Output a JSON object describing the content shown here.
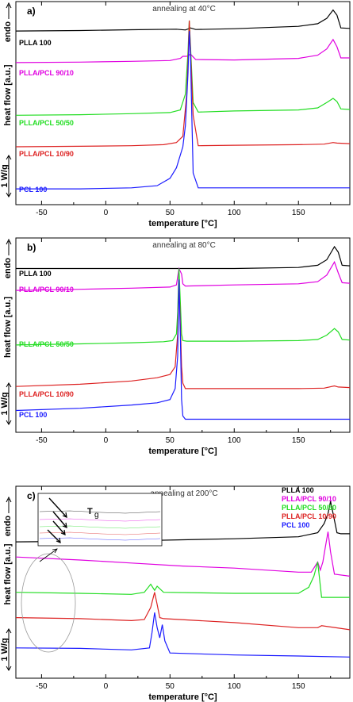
{
  "chart_data": [
    {
      "type": "line",
      "panel_label": "a)",
      "title": "annealing at 40°C",
      "xlabel": "temperature [°C]",
      "ylabel": "heat flow [a.u.]",
      "endo_label": "endo",
      "scale_label": "1 W/g",
      "xlim": [
        -70,
        190
      ],
      "xticks": [
        -50,
        0,
        50,
        100,
        150
      ],
      "legend_position": "left, labels above each curve",
      "series": [
        {
          "name": "PLLA 100",
          "color": "#000000",
          "baseline": 0.8,
          "x": [
            -70,
            -20,
            20,
            55,
            62,
            66,
            70,
            100,
            150,
            165,
            172,
            177,
            180,
            183,
            190
          ],
          "y": [
            0.8,
            0.805,
            0.812,
            0.818,
            0.81,
            0.83,
            0.815,
            0.822,
            0.845,
            0.87,
            0.92,
            1.0,
            0.95,
            0.83,
            0.825
          ]
        },
        {
          "name": "PLLA/PCL 90/10",
          "color": "#e000e0",
          "baseline": 0.5,
          "x": [
            -70,
            -20,
            20,
            50,
            58,
            60,
            63,
            66,
            70,
            100,
            150,
            165,
            172,
            177,
            180,
            183,
            190
          ],
          "y": [
            0.5,
            0.505,
            0.512,
            0.52,
            0.54,
            0.56,
            0.56,
            0.58,
            0.53,
            0.525,
            0.54,
            0.57,
            0.63,
            0.72,
            0.65,
            0.545,
            0.545
          ]
        },
        {
          "name": "PLLA/PCL 50/50",
          "color": "#22dd22",
          "baseline": 0.0,
          "x": [
            -70,
            -20,
            20,
            50,
            58,
            62,
            64,
            65,
            66,
            68,
            72,
            100,
            150,
            165,
            172,
            177,
            180,
            183,
            190
          ],
          "y": [
            0.0,
            0.005,
            0.015,
            0.025,
            0.05,
            0.2,
            0.6,
            0.9,
            0.65,
            0.12,
            0.03,
            0.04,
            0.05,
            0.07,
            0.12,
            0.16,
            0.13,
            0.06,
            0.055
          ]
        },
        {
          "name": "PLLA/PCL 10/90",
          "color": "#dd2222",
          "baseline": -0.3,
          "x": [
            -70,
            -20,
            20,
            45,
            55,
            60,
            63,
            64,
            65,
            66,
            68,
            72,
            100,
            150,
            170,
            177,
            180,
            190
          ],
          "y": [
            -0.3,
            -0.295,
            -0.29,
            -0.28,
            -0.26,
            -0.2,
            0.2,
            0.5,
            0.9,
            0.6,
            0.0,
            -0.29,
            -0.285,
            -0.28,
            -0.275,
            -0.26,
            -0.265,
            -0.27
          ]
        },
        {
          "name": "PCL 100",
          "color": "#1a1aff",
          "baseline": -0.7,
          "x": [
            -70,
            -20,
            20,
            40,
            50,
            55,
            60,
            62,
            64,
            65,
            66,
            67,
            68,
            72,
            100,
            150,
            190
          ],
          "y": [
            -0.7,
            -0.7,
            -0.69,
            -0.67,
            -0.6,
            -0.5,
            -0.3,
            -0.1,
            0.4,
            0.8,
            0.55,
            0.0,
            -0.55,
            -0.69,
            -0.69,
            -0.69,
            -0.69
          ]
        }
      ]
    },
    {
      "type": "line",
      "panel_label": "b)",
      "title": "annealing at 80°C",
      "xlabel": "temperature [°C]",
      "ylabel": "heat flow [a.u.]",
      "endo_label": "endo",
      "scale_label": "1 W/g",
      "xlim": [
        -70,
        190
      ],
      "xticks": [
        -50,
        0,
        50,
        100,
        150
      ],
      "legend_position": "left, labels above each curve",
      "series": [
        {
          "name": "PLLA 100",
          "color": "#000000",
          "baseline": 0.8,
          "x": [
            -70,
            -20,
            20,
            55,
            100,
            150,
            165,
            172,
            178,
            181,
            184,
            190
          ],
          "y": [
            0.8,
            0.8,
            0.8,
            0.8,
            0.8,
            0.81,
            0.83,
            0.88,
            1.0,
            0.95,
            0.83,
            0.825
          ]
        },
        {
          "name": "PLLA/PCL 90/10",
          "color": "#e000e0",
          "baseline": 0.6,
          "x": [
            -70,
            -20,
            20,
            50,
            55,
            57,
            59,
            60,
            62,
            100,
            150,
            165,
            172,
            178,
            181,
            184,
            190
          ],
          "y": [
            0.6,
            0.61,
            0.62,
            0.63,
            0.65,
            0.8,
            0.75,
            0.66,
            0.64,
            0.65,
            0.66,
            0.68,
            0.74,
            0.86,
            0.76,
            0.67,
            0.665
          ]
        },
        {
          "name": "PLLA/PCL 50/50",
          "color": "#22dd22",
          "baseline": 0.1,
          "x": [
            -70,
            -20,
            20,
            45,
            52,
            55,
            56,
            57,
            58,
            59,
            60,
            63,
            100,
            150,
            165,
            172,
            178,
            181,
            184,
            190
          ],
          "y": [
            0.1,
            0.11,
            0.12,
            0.13,
            0.14,
            0.2,
            0.4,
            0.8,
            0.5,
            0.2,
            0.14,
            0.135,
            0.135,
            0.14,
            0.15,
            0.19,
            0.25,
            0.22,
            0.15,
            0.145
          ]
        },
        {
          "name": "PLLA/PCL 10/90",
          "color": "#dd2222",
          "baseline": -0.28,
          "x": [
            -70,
            -20,
            20,
            40,
            50,
            54,
            56,
            57,
            58,
            59,
            60,
            62,
            100,
            150,
            170,
            178,
            181,
            190
          ],
          "y": [
            -0.28,
            -0.26,
            -0.23,
            -0.2,
            -0.17,
            -0.1,
            0.2,
            0.7,
            0.3,
            -0.1,
            -0.25,
            -0.3,
            -0.3,
            -0.3,
            -0.295,
            -0.275,
            -0.285,
            -0.29
          ]
        },
        {
          "name": "PCL 100",
          "color": "#1a1aff",
          "baseline": -0.5,
          "x": [
            -70,
            -20,
            20,
            40,
            50,
            54,
            56,
            57,
            58,
            59,
            60,
            62,
            100,
            150,
            190
          ],
          "y": [
            -0.5,
            -0.48,
            -0.45,
            -0.43,
            -0.4,
            -0.3,
            0.0,
            0.7,
            0.2,
            -0.4,
            -0.55,
            -0.58,
            -0.58,
            -0.58,
            -0.58
          ]
        }
      ]
    },
    {
      "type": "line",
      "panel_label": "c)",
      "title": "annealing at 200°C",
      "xlabel": "temperature [°C]",
      "ylabel": "heat flow [a.u.]",
      "endo_label": "endo",
      "scale_label": "1 W/g",
      "inset_label": "T",
      "inset_label_sub": "g",
      "xlim": [
        -70,
        190
      ],
      "xticks": [
        -50,
        0,
        50,
        100,
        150
      ],
      "legend_position": "top-right",
      "series": [
        {
          "name": "PLLA 100",
          "color": "#000000",
          "baseline": 0.9,
          "x": [
            -70,
            -20,
            20,
            60,
            100,
            150,
            165,
            170,
            173,
            175,
            177,
            180,
            183,
            190
          ],
          "y": [
            0.9,
            0.905,
            0.91,
            0.92,
            0.93,
            0.95,
            0.99,
            1.08,
            1.18,
            1.3,
            1.18,
            0.99,
            0.98,
            0.98
          ]
        },
        {
          "name": "PLLA/PCL 90/10",
          "color": "#e000e0",
          "baseline": 0.75,
          "x": [
            -70,
            -20,
            20,
            60,
            100,
            150,
            160,
            165,
            167,
            169,
            171,
            173,
            175,
            178,
            190
          ],
          "y": [
            0.75,
            0.72,
            0.69,
            0.66,
            0.64,
            0.6,
            0.6,
            0.7,
            0.62,
            0.7,
            0.85,
            1.0,
            0.8,
            0.58,
            0.56
          ]
        },
        {
          "name": "PLLA/PCL 50/50",
          "color": "#22dd22",
          "baseline": 0.4,
          "x": [
            -70,
            -20,
            20,
            30,
            35,
            38,
            40,
            45,
            100,
            150,
            158,
            162,
            165,
            168,
            190
          ],
          "y": [
            0.4,
            0.39,
            0.38,
            0.4,
            0.48,
            0.42,
            0.46,
            0.4,
            0.39,
            0.39,
            0.45,
            0.56,
            0.7,
            0.35,
            0.35
          ]
        },
        {
          "name": "PLLA/PCL 10/90",
          "color": "#dd2222",
          "baseline": 0.15,
          "x": [
            -70,
            -20,
            20,
            30,
            35,
            38,
            40,
            42,
            45,
            100,
            150,
            165,
            168,
            190
          ],
          "y": [
            0.15,
            0.14,
            0.12,
            0.13,
            0.25,
            0.4,
            0.28,
            0.15,
            0.14,
            0.1,
            0.05,
            0.05,
            0.07,
            0.03
          ]
        },
        {
          "name": "PCL 100",
          "color": "#1a1aff",
          "baseline": -0.15,
          "x": [
            -70,
            -20,
            20,
            34,
            36,
            38,
            40,
            42,
            44,
            46,
            50,
            100,
            150,
            190
          ],
          "y": [
            -0.15,
            -0.155,
            -0.17,
            -0.15,
            0.0,
            0.2,
            0.05,
            -0.05,
            0.08,
            -0.08,
            -0.2,
            -0.22,
            -0.23,
            -0.24
          ]
        }
      ]
    }
  ]
}
